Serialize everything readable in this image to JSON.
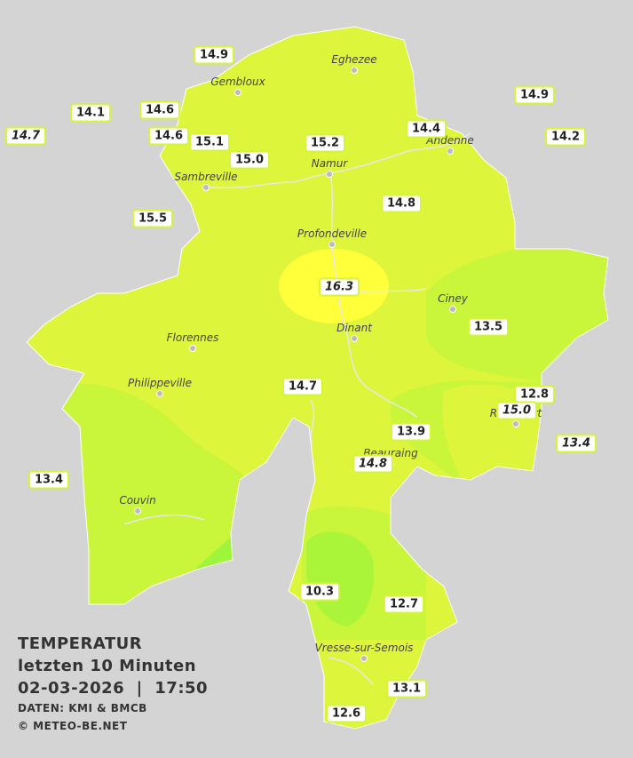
{
  "stations": [
    {
      "temperature": "14.9"
    },
    {
      "temperature": "14.1"
    },
    {
      "temperature": "14.6"
    },
    {
      "temperature": "14.7",
      "italic": true
    },
    {
      "temperature": "14.6"
    },
    {
      "temperature": "15.1"
    },
    {
      "temperature": "15.0"
    },
    {
      "temperature": "15.2"
    },
    {
      "temperature": "14.4"
    },
    {
      "temperature": "14.9"
    },
    {
      "temperature": "14.2"
    },
    {
      "temperature": "14.8"
    },
    {
      "temperature": "15.5"
    },
    {
      "temperature": "16.3",
      "italic": true
    },
    {
      "temperature": "13.5"
    },
    {
      "temperature": "14.7"
    },
    {
      "temperature": "12.8"
    },
    {
      "temperature": "15.0",
      "italic": true
    },
    {
      "temperature": "13.9"
    },
    {
      "temperature": "13.4",
      "italic": true
    },
    {
      "temperature": "14.8",
      "italic": true
    },
    {
      "temperature": "13.4"
    },
    {
      "temperature": "10.3"
    },
    {
      "temperature": "12.7"
    },
    {
      "temperature": "13.1"
    },
    {
      "temperature": "12.6"
    }
  ],
  "towns": [
    {
      "name": "Eghezee"
    },
    {
      "name": "Gembloux"
    },
    {
      "name": "Andenne"
    },
    {
      "name": "Namur"
    },
    {
      "name": "Sambreville"
    },
    {
      "name": "Profondeville"
    },
    {
      "name": "Ciney"
    },
    {
      "name": "Dinant"
    },
    {
      "name": "Florennes"
    },
    {
      "name": "Philippeville"
    },
    {
      "name": "Rochefort"
    },
    {
      "name": "Beauraing"
    },
    {
      "name": "Couvin"
    },
    {
      "name": "Vresse-sur-Semois"
    }
  ],
  "legend": {
    "title": "TEMPERATUR",
    "period": "letzten 10 Minuten",
    "timestamp": "02-03-2026  |  17:50",
    "source": "DATEN: KMI & BMCB",
    "copyright": "© METEO-BE.NET"
  }
}
